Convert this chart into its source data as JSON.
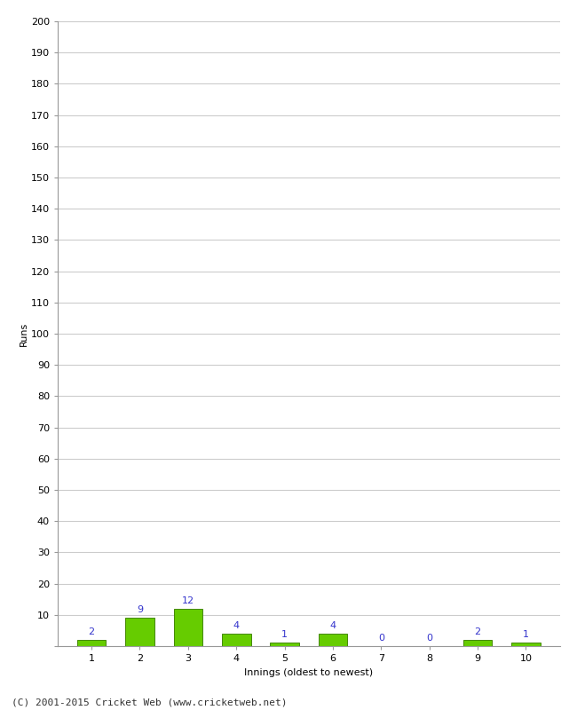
{
  "innings": [
    1,
    2,
    3,
    4,
    5,
    6,
    7,
    8,
    9,
    10
  ],
  "runs": [
    2,
    9,
    12,
    4,
    1,
    4,
    0,
    0,
    2,
    1
  ],
  "bar_color": "#66cc00",
  "bar_edgecolor": "#448800",
  "label_color": "#3333cc",
  "xlabel": "Innings (oldest to newest)",
  "ylabel": "Runs",
  "ylim": [
    0,
    200
  ],
  "yticks": [
    0,
    10,
    20,
    30,
    40,
    50,
    60,
    70,
    80,
    90,
    100,
    110,
    120,
    130,
    140,
    150,
    160,
    170,
    180,
    190,
    200
  ],
  "background_color": "#ffffff",
  "grid_color": "#cccccc",
  "footer": "(C) 2001-2015 Cricket Web (www.cricketweb.net)",
  "footer_color": "#333333",
  "label_fontsize": 8,
  "axis_fontsize": 8,
  "tick_fontsize": 8,
  "footer_fontsize": 8
}
